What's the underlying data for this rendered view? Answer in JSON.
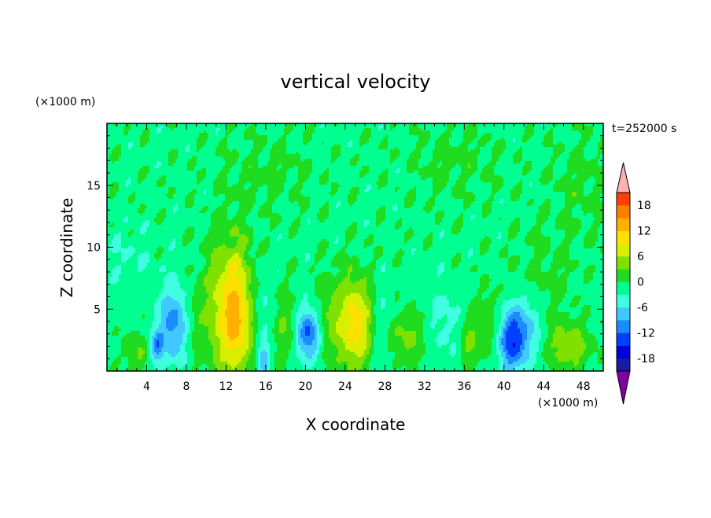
{
  "chart_data": {
    "type": "heatmap",
    "title": "vertical velocity",
    "xlabel": "X coordinate",
    "ylabel": "Z coordinate",
    "x_unit": "(×1000 m)",
    "y_unit": "(×1000 m)",
    "time_label": "t=252000 s",
    "x_ticks": [
      4,
      8,
      12,
      16,
      20,
      24,
      28,
      32,
      36,
      40,
      44,
      48
    ],
    "y_ticks": [
      5,
      10,
      15
    ],
    "xlim": [
      0,
      50
    ],
    "ylim": [
      0,
      20
    ],
    "colorbar": {
      "ticks": [
        18,
        12,
        6,
        0,
        -6,
        -12,
        -18
      ],
      "levels": [
        -21,
        -18,
        -15,
        -12,
        -9,
        -6,
        -3,
        0,
        3,
        6,
        9,
        12,
        15,
        18,
        21
      ],
      "colors": [
        "#400080",
        "#1a1aa0",
        "#0000dd",
        "#0040ff",
        "#1a8cff",
        "#40c8ff",
        "#40ffe0",
        "#00ff90",
        "#20dc20",
        "#80e000",
        "#d8f000",
        "#ffe000",
        "#ffb000",
        "#ff8000",
        "#ff4000",
        "#ff0000"
      ],
      "under_color": "#8000a0",
      "over_color": "#ffb0b0"
    },
    "background_value": -1,
    "features": [
      {
        "x": 3.0,
        "z": 1.5,
        "sx": 0.9,
        "sz": 1.2,
        "amp": 4
      },
      {
        "x": 5.0,
        "z": 2.0,
        "sx": 0.5,
        "sz": 1.0,
        "amp": -8
      },
      {
        "x": 6.8,
        "z": 3.8,
        "sx": 1.1,
        "sz": 2.2,
        "amp": -10
      },
      {
        "x": 8.5,
        "z": 4.0,
        "sx": 1.0,
        "sz": 2.5,
        "amp": 3
      },
      {
        "x": 12.6,
        "z": 5.0,
        "sx": 1.6,
        "sz": 3.8,
        "amp": 13
      },
      {
        "x": 13.4,
        "z": 3.2,
        "sx": 0.9,
        "sz": 1.8,
        "amp": 3
      },
      {
        "x": 15.5,
        "z": 4.5,
        "sx": 0.9,
        "sz": 3.0,
        "amp": -4
      },
      {
        "x": 15.8,
        "z": 1.0,
        "sx": 0.4,
        "sz": 0.8,
        "amp": -7
      },
      {
        "x": 17.8,
        "z": 3.5,
        "sx": 0.8,
        "sz": 2.2,
        "amp": 4
      },
      {
        "x": 20.3,
        "z": 3.0,
        "sx": 0.8,
        "sz": 1.5,
        "amp": -12
      },
      {
        "x": 22.0,
        "z": 4.5,
        "sx": 0.8,
        "sz": 2.5,
        "amp": 3
      },
      {
        "x": 25.0,
        "z": 3.8,
        "sx": 1.4,
        "sz": 2.6,
        "amp": 12
      },
      {
        "x": 27.5,
        "z": 3.5,
        "sx": 1.0,
        "sz": 2.5,
        "amp": -4
      },
      {
        "x": 30.0,
        "z": 2.8,
        "sx": 1.5,
        "sz": 1.5,
        "amp": 5
      },
      {
        "x": 34.0,
        "z": 4.0,
        "sx": 1.5,
        "sz": 2.5,
        "amp": -3
      },
      {
        "x": 36.5,
        "z": 2.5,
        "sx": 0.7,
        "sz": 1.5,
        "amp": 5
      },
      {
        "x": 38.5,
        "z": 4.0,
        "sx": 0.7,
        "sz": 2.0,
        "amp": 4
      },
      {
        "x": 40.8,
        "z": 2.5,
        "sx": 1.0,
        "sz": 1.8,
        "amp": -13
      },
      {
        "x": 42.5,
        "z": 3.5,
        "sx": 1.0,
        "sz": 2.0,
        "amp": -5
      },
      {
        "x": 46.5,
        "z": 2.0,
        "sx": 1.6,
        "sz": 1.4,
        "amp": 6
      },
      {
        "x": 44.0,
        "z": 8.0,
        "sx": 2.0,
        "sz": 3.0,
        "amp": 2
      },
      {
        "x": 16.0,
        "z": 16.0,
        "sx": 3.0,
        "sz": 2.0,
        "amp": 2
      },
      {
        "x": 35.0,
        "z": 17.0,
        "sx": 3.0,
        "sz": 2.0,
        "amp": 2
      },
      {
        "x": 2.0,
        "z": 9.0,
        "sx": 2.0,
        "sz": 2.0,
        "amp": -2
      },
      {
        "x": 48.0,
        "z": 15.0,
        "sx": 2.0,
        "sz": 3.0,
        "amp": 2
      }
    ]
  }
}
